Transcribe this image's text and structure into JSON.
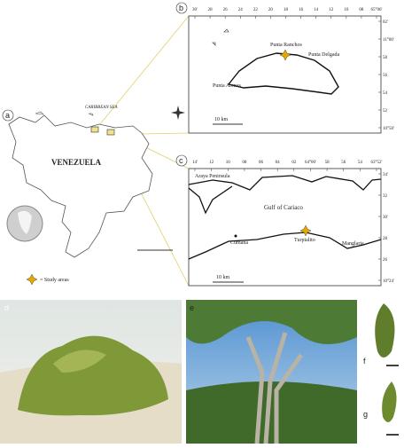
{
  "panel_labels": [
    "a",
    "b",
    "c",
    "d",
    "e",
    "f",
    "g"
  ],
  "map_a": {
    "sea_label": "CARIBBEAN SEA",
    "country_label": "VENEZUELA",
    "legend": "= Study areas"
  },
  "map_b": {
    "top_ticks": [
      "30'",
      "28",
      "26",
      "24",
      "22",
      "20",
      "18",
      "16",
      "14",
      "12",
      "10",
      "08",
      "65°06'"
    ],
    "right_ticks": [
      "02'",
      "11°00'",
      "58",
      "56",
      "54",
      "52",
      "10°50'"
    ],
    "places": [
      "Punta Ranchos",
      "Punta Delgada",
      "Punta Arenas"
    ],
    "scale": "10 km"
  },
  "map_c": {
    "top_ticks": [
      "14'",
      "12",
      "10",
      "08",
      "06",
      "04",
      "02",
      "64°00'",
      "58",
      "56",
      "54",
      "63°52'"
    ],
    "right_ticks": [
      "34'",
      "32",
      "30'",
      "28",
      "26",
      "10°24'"
    ],
    "places": [
      "Araya Peninsula",
      "Gulf of Cariaco",
      "Cumaná",
      "Turpialito",
      "Manglaria"
    ],
    "scale": "10 km"
  }
}
